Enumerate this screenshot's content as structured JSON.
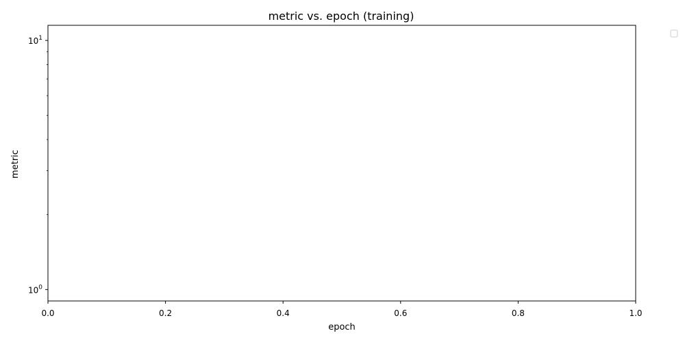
{
  "chart_data": {
    "type": "line",
    "title": "metric vs. epoch (training)",
    "xlabel": "epoch",
    "ylabel": "metric",
    "xlim": [
      0.0,
      1.0
    ],
    "ylim": [
      0.9,
      11.5
    ],
    "yscale": "log",
    "x_ticks": [
      {
        "value": 0.0,
        "label": "0.0"
      },
      {
        "value": 0.2,
        "label": "0.2"
      },
      {
        "value": 0.4,
        "label": "0.4"
      },
      {
        "value": 0.6,
        "label": "0.6"
      },
      {
        "value": 0.8,
        "label": "0.8"
      },
      {
        "value": 1.0,
        "label": "1.0"
      }
    ],
    "y_major_ticks": [
      {
        "value": 1,
        "base": "10",
        "exp": "0"
      },
      {
        "value": 10,
        "base": "10",
        "exp": "1"
      }
    ],
    "y_minor_ticks": [
      2,
      3,
      4,
      5,
      6,
      7,
      8,
      9
    ],
    "series": [],
    "grid": false,
    "legend": {
      "placement": "outside-top-right",
      "entries": []
    },
    "colors": {
      "axis": "#000000",
      "background": "#ffffff",
      "legend_border": "#cccccc"
    }
  }
}
